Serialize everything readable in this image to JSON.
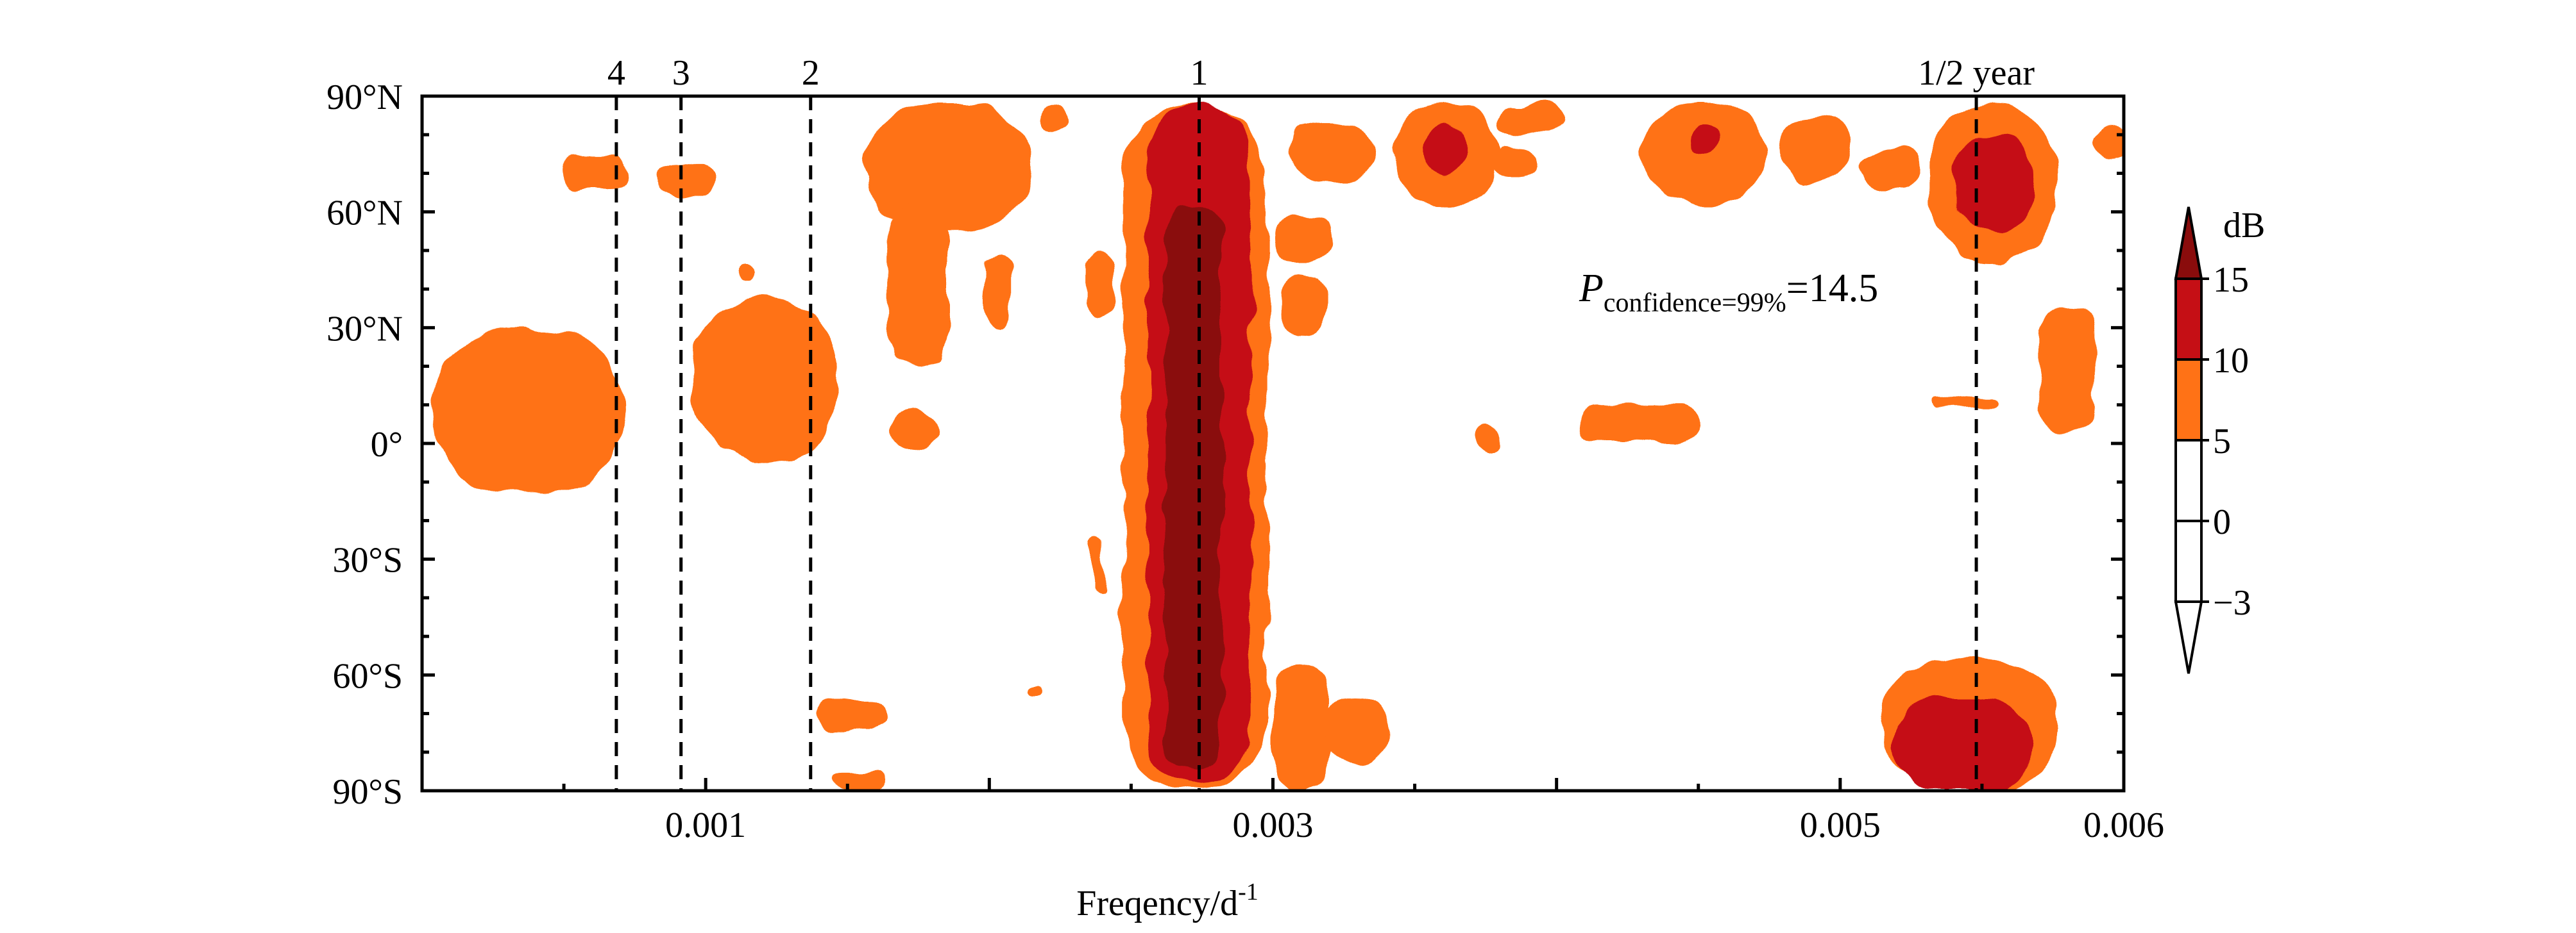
{
  "chart_data": {
    "type": "heatmap",
    "xlabel_main": "Freqency/d",
    "xlabel_superscript": "-1",
    "xlim": [
      0,
      0.006
    ],
    "ylim": [
      -90,
      90
    ],
    "xticks": [
      {
        "value": 0.001,
        "label": "0.001"
      },
      {
        "value": 0.003,
        "label": "0.003"
      },
      {
        "value": 0.005,
        "label": "0.005"
      },
      {
        "value": 0.006,
        "label": "0.006"
      }
    ],
    "yticks": [
      {
        "value": 90,
        "label": "90°N"
      },
      {
        "value": 60,
        "label": "60°N"
      },
      {
        "value": 30,
        "label": "30°N"
      },
      {
        "value": 0,
        "label": "0°"
      },
      {
        "value": -30,
        "label": "30°S"
      },
      {
        "value": -60,
        "label": "60°S"
      },
      {
        "value": -90,
        "label": "90°S"
      }
    ],
    "period_lines": [
      {
        "label": "4",
        "freq": 0.000685
      },
      {
        "label": "3",
        "freq": 0.000913
      },
      {
        "label": "2",
        "freq": 0.00137
      },
      {
        "label": "1",
        "freq": 0.00274
      },
      {
        "label": "1/2 year",
        "freq": 0.00548
      }
    ],
    "annotation": {
      "italic": "P",
      "subscript": "confidence=99%",
      "text": "=14.5"
    },
    "colorbar": {
      "unit": "dB",
      "levels": [
        -3,
        0,
        5,
        10,
        15
      ],
      "labels": [
        "−3",
        "0",
        "5",
        "10",
        "15"
      ],
      "colors": [
        "#ffffff",
        "#ffffff",
        "#ff7216",
        "#c50f15",
        "#8a0c0c"
      ]
    },
    "colors": {
      "level5": "#ff7216",
      "level10": "#c50f15",
      "level15": "#8a0c0c"
    },
    "contour_blobs": [
      {
        "level": 5,
        "f0": 0.00247,
        "f1": 0.00298,
        "l0": -90,
        "l1": 88
      },
      {
        "level": 10,
        "f0": 0.00256,
        "f1": 0.00292,
        "l0": -88,
        "l1": 88
      },
      {
        "level": 15,
        "f0": 0.00262,
        "f1": 0.00282,
        "l0": -84,
        "l1": 62
      },
      {
        "level": 5,
        "f0": 3e-05,
        "f1": 0.00072,
        "l0": -13,
        "l1": 30
      },
      {
        "level": 5,
        "f0": 0.00049,
        "f1": 0.00072,
        "l0": 66,
        "l1": 75
      },
      {
        "level": 5,
        "f0": 0.00084,
        "f1": 0.00104,
        "l0": 64,
        "l1": 72
      },
      {
        "level": 5,
        "f0": 0.00095,
        "f1": 0.00147,
        "l0": -5,
        "l1": 38
      },
      {
        "level": 5,
        "f0": 0.00112,
        "f1": 0.00118,
        "l0": 42,
        "l1": 46
      },
      {
        "level": 5,
        "f0": 0.00156,
        "f1": 0.00215,
        "l0": 55,
        "l1": 88
      },
      {
        "level": 5,
        "f0": 0.00164,
        "f1": 0.00185,
        "l0": 20,
        "l1": 62
      },
      {
        "level": 5,
        "f0": 0.00165,
        "f1": 0.00181,
        "l0": -2,
        "l1": 9
      },
      {
        "level": 5,
        "f0": 0.00198,
        "f1": 0.00208,
        "l0": 30,
        "l1": 49
      },
      {
        "level": 5,
        "f0": 0.00218,
        "f1": 0.00228,
        "l0": 80,
        "l1": 87
      },
      {
        "level": 5,
        "f0": 0.00234,
        "f1": 0.00244,
        "l0": 33,
        "l1": 50
      },
      {
        "level": 5,
        "f0": 0.00236,
        "f1": 0.0024,
        "l0": -39,
        "l1": -25
      },
      {
        "level": 5,
        "f0": 0.00139,
        "f1": 0.00164,
        "l0": -75,
        "l1": -66
      },
      {
        "level": 5,
        "f0": 0.00145,
        "f1": 0.00163,
        "l0": -90,
        "l1": -85
      },
      {
        "level": 5,
        "f0": 0.003,
        "f1": 0.0032,
        "l0": -90,
        "l1": -57
      },
      {
        "level": 5,
        "f0": 0.00318,
        "f1": 0.00341,
        "l0": -84,
        "l1": -66
      },
      {
        "level": 5,
        "f0": 0.003,
        "f1": 0.00322,
        "l0": 47,
        "l1": 59
      },
      {
        "level": 5,
        "f0": 0.00303,
        "f1": 0.00318,
        "l0": 27,
        "l1": 44
      },
      {
        "level": 5,
        "f0": 0.00306,
        "f1": 0.00337,
        "l0": 68,
        "l1": 83
      },
      {
        "level": 5,
        "f0": 0.00342,
        "f1": 0.0038,
        "l0": 62,
        "l1": 88
      },
      {
        "level": 10,
        "f0": 0.00353,
        "f1": 0.00368,
        "l0": 70,
        "l1": 82
      },
      {
        "level": 5,
        "f0": 0.0038,
        "f1": 0.00402,
        "l0": 80,
        "l1": 88
      },
      {
        "level": 5,
        "f0": 0.00378,
        "f1": 0.00393,
        "l0": 69,
        "l1": 77
      },
      {
        "level": 5,
        "f0": 0.00407,
        "f1": 0.0045,
        "l0": 0,
        "l1": 10
      },
      {
        "level": 5,
        "f0": 0.00372,
        "f1": 0.0038,
        "l0": -3,
        "l1": 4
      },
      {
        "level": 5,
        "f0": 0.0043,
        "f1": 0.00474,
        "l0": 62,
        "l1": 88
      },
      {
        "level": 10,
        "f0": 0.00446,
        "f1": 0.00458,
        "l0": 75,
        "l1": 83
      },
      {
        "level": 5,
        "f0": 0.00478,
        "f1": 0.00504,
        "l0": 68,
        "l1": 84
      },
      {
        "level": 5,
        "f0": 0.00507,
        "f1": 0.00528,
        "l0": 66,
        "l1": 76
      },
      {
        "level": 5,
        "f0": 0.00532,
        "f1": 0.00576,
        "l0": 47,
        "l1": 88
      },
      {
        "level": 10,
        "f0": 0.0054,
        "f1": 0.00568,
        "l0": 55,
        "l1": 80
      },
      {
        "level": 5,
        "f0": 0.00532,
        "f1": 0.00556,
        "l0": 9,
        "l1": 12
      },
      {
        "level": 5,
        "f0": 0.0057,
        "f1": 0.0059,
        "l0": 3,
        "l1": 36
      },
      {
        "level": 5,
        "f0": 0.0059,
        "f1": 0.006,
        "l0": 73,
        "l1": 82
      },
      {
        "level": 5,
        "f0": 0.00514,
        "f1": 0.00577,
        "l0": -90,
        "l1": -56
      },
      {
        "level": 10,
        "f0": 0.00518,
        "f1": 0.00568,
        "l0": -90,
        "l1": -66
      },
      {
        "level": 5,
        "f0": 0.00212,
        "f1": 0.00218,
        "l0": -66,
        "l1": -63
      }
    ]
  }
}
